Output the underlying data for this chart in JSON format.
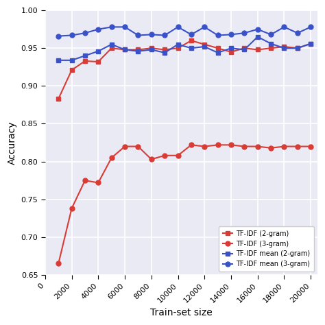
{
  "x": [
    1000,
    2000,
    3000,
    4000,
    5000,
    6000,
    7000,
    8000,
    9000,
    10000,
    11000,
    12000,
    13000,
    14000,
    15000,
    16000,
    17000,
    18000,
    19000,
    20000
  ],
  "tfidf_2gram": [
    0.883,
    0.921,
    0.933,
    0.932,
    0.95,
    0.948,
    0.948,
    0.95,
    0.948,
    0.95,
    0.96,
    0.955,
    0.95,
    0.945,
    0.95,
    0.948,
    0.95,
    0.952,
    0.95,
    0.956
  ],
  "tfidf_3gram": [
    0.665,
    0.738,
    0.775,
    0.772,
    0.805,
    0.82,
    0.82,
    0.803,
    0.808,
    0.808,
    0.822,
    0.82,
    0.822,
    0.822,
    0.82,
    0.82,
    0.818,
    0.82,
    0.82,
    0.82
  ],
  "tfidf_mean_2gram": [
    0.934,
    0.934,
    0.94,
    0.946,
    0.955,
    0.948,
    0.946,
    0.948,
    0.944,
    0.955,
    0.95,
    0.952,
    0.944,
    0.95,
    0.948,
    0.965,
    0.956,
    0.95,
    0.95,
    0.956
  ],
  "tfidf_mean_3gram": [
    0.966,
    0.967,
    0.97,
    0.975,
    0.978,
    0.978,
    0.967,
    0.968,
    0.967,
    0.978,
    0.968,
    0.978,
    0.967,
    0.968,
    0.97,
    0.975,
    0.968,
    0.978,
    0.97,
    0.978
  ],
  "xlabel": "Train-set size",
  "ylabel": "Accuracy",
  "ylim": [
    0.65,
    1.0
  ],
  "xlim": [
    0,
    20500
  ],
  "xticks": [
    0,
    2000,
    4000,
    6000,
    8000,
    10000,
    12000,
    14000,
    16000,
    18000,
    20000
  ],
  "xticklabels": [
    "0",
    "2000",
    "4000",
    "6000",
    "8000",
    "10000",
    "12000",
    "14000",
    "16000",
    "18000",
    "20000"
  ],
  "yticks": [
    0.65,
    0.7,
    0.75,
    0.8,
    0.85,
    0.9,
    0.95,
    1.0
  ],
  "legend": [
    "TF-IDF (2-gram)",
    "TF-IDF (3-gram)",
    "TF-IDF mean (2-gram)",
    "TF-IDF mean (3-gram)"
  ],
  "color_red": "#d93b35",
  "color_blue": "#3a52c8",
  "bg_color": "#eaeaf4",
  "grid_color": "white",
  "fig_width": 4.74,
  "fig_height": 4.74,
  "dpi": 100,
  "marker_size": 5,
  "line_width": 1.5,
  "xlabel_fontsize": 10,
  "ylabel_fontsize": 10,
  "tick_fontsize": 8,
  "legend_fontsize": 7
}
